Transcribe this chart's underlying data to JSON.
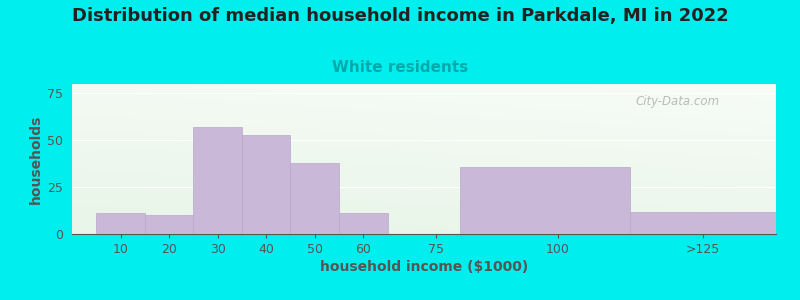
{
  "title": "Distribution of median household income in Parkdale, MI in 2022",
  "subtitle": "White residents",
  "xlabel": "household income ($1000)",
  "ylabel": "households",
  "background_color": "#00EEEE",
  "bar_color": "#c9b8d8",
  "bar_edge_color": "#b8a8cc",
  "categories": [
    "10",
    "20",
    "30",
    "40",
    "50",
    "60",
    "75",
    "100",
    ">125"
  ],
  "values": [
    11,
    10,
    57,
    53,
    38,
    11,
    0,
    36,
    12
  ],
  "x_lefts": [
    5,
    15,
    25,
    35,
    45,
    55,
    65,
    80,
    115
  ],
  "x_widths": [
    10,
    10,
    10,
    10,
    10,
    10,
    15,
    35,
    30
  ],
  "x_ticks": [
    10,
    20,
    30,
    40,
    50,
    60,
    75,
    100,
    130
  ],
  "xlim": [
    0,
    145
  ],
  "yticks": [
    0,
    25,
    50,
    75
  ],
  "ylim": [
    0,
    80
  ],
  "title_fontsize": 13,
  "subtitle_fontsize": 11,
  "axis_label_fontsize": 10,
  "tick_fontsize": 9,
  "watermark_text": "City-Data.com",
  "watermark_color": "#b0b0b0",
  "subtitle_color": "#00AAAA",
  "title_color": "#222222",
  "label_color": "#555555",
  "grid_color": "#ffffff",
  "plot_bg_green": "#e8f5e8",
  "plot_bg_white": "#ffffff"
}
